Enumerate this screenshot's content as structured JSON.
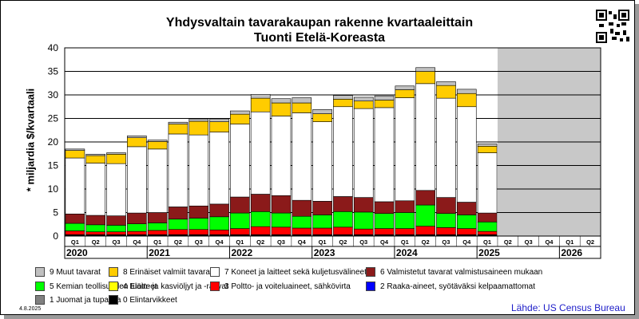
{
  "title": "Yhdysvaltain tavarakaupan rakenne kvartaaleittain",
  "subtitle": "Tuonti Etelä-Koreasta",
  "ylabel": "* miljardia $/kvartaali",
  "date_label": "4.8.2025",
  "source": "Lähde: US Census Bureau",
  "qr_icon": "qr-code-icon",
  "colors": {
    "forecast_bg": "#c8c8c8",
    "grid": "#000000"
  },
  "chart_data": {
    "type": "bar",
    "stacked": true,
    "ylim": [
      0,
      40
    ],
    "yticks": [
      0,
      5,
      10,
      15,
      20,
      25,
      30,
      35,
      40
    ],
    "grid": true,
    "legend_position": "bottom",
    "x": [
      "Q1",
      "Q2",
      "Q3",
      "Q4",
      "Q1",
      "Q2",
      "Q3",
      "Q4",
      "Q1",
      "Q2",
      "Q3",
      "Q4",
      "Q1",
      "Q2",
      "Q3",
      "Q4",
      "Q1",
      "Q2",
      "Q3",
      "Q4",
      "Q1",
      "Q2",
      "Q3",
      "Q4",
      "Q1",
      "Q2"
    ],
    "years": [
      {
        "label": "2020",
        "start": 0
      },
      {
        "label": "2021",
        "start": 4
      },
      {
        "label": "2022",
        "start": 8
      },
      {
        "label": "2023",
        "start": 12
      },
      {
        "label": "2024",
        "start": 16
      },
      {
        "label": "2025",
        "start": 20
      },
      {
        "label": "2026",
        "start": 24
      }
    ],
    "forecast_start_index": 21,
    "series": [
      {
        "name": "0 Elintarvikkeet",
        "color": "#000000",
        "values": [
          0.1,
          0.1,
          0.1,
          0.1,
          0.1,
          0.1,
          0.1,
          0.1,
          0.1,
          0.1,
          0.1,
          0.1,
          0.1,
          0.1,
          0.1,
          0.1,
          0.1,
          0.1,
          0.1,
          0.1,
          0.1,
          null,
          null,
          null,
          null,
          null
        ]
      },
      {
        "name": "1 Juomat ja tupakka",
        "color": "#808080",
        "values": [
          0.1,
          0.1,
          0.1,
          0.1,
          0.1,
          0.1,
          0.1,
          0.1,
          0.1,
          0.1,
          0.1,
          0.1,
          0.1,
          0.1,
          0.1,
          0.1,
          0.1,
          0.1,
          0.1,
          0.1,
          0.1,
          null,
          null,
          null,
          null,
          null
        ]
      },
      {
        "name": "2 Raaka-aineet, syötäväksi kelpaamattomat",
        "color": "#0000ff",
        "values": [
          0.1,
          0.1,
          0.1,
          0.1,
          0.1,
          0.1,
          0.1,
          0.1,
          0.1,
          0.1,
          0.1,
          0.1,
          0.1,
          0.1,
          0.1,
          0.1,
          0.1,
          0.1,
          0.1,
          0.1,
          0.1,
          null,
          null,
          null,
          null,
          null
        ]
      },
      {
        "name": "3 Poltto- ja voiteluaineet, sähkövirta",
        "color": "#ff0000",
        "values": [
          0.8,
          0.6,
          0.6,
          0.7,
          0.9,
          1.1,
          1.1,
          1.0,
          1.3,
          1.7,
          1.6,
          1.4,
          1.4,
          1.6,
          1.2,
          1.3,
          1.3,
          1.8,
          1.5,
          1.3,
          0.7,
          null,
          null,
          null,
          null,
          null
        ]
      },
      {
        "name": "4 Eläin- ja kasviöljyt ja -rasvat",
        "color": "#ffff00",
        "values": [
          0,
          0,
          0,
          0,
          0,
          0,
          0,
          0,
          0,
          0,
          0,
          0,
          0,
          0,
          0,
          0,
          0,
          0,
          0,
          0,
          0,
          null,
          null,
          null,
          null,
          null
        ]
      },
      {
        "name": "5 Kemian teollisuuden tuotteet",
        "color": "#00ff00",
        "values": [
          1.6,
          1.5,
          1.4,
          1.6,
          1.6,
          2.2,
          2.4,
          2.8,
          3.3,
          3.2,
          3.0,
          2.5,
          2.8,
          3.3,
          3.6,
          3.2,
          3.4,
          4.5,
          3.0,
          2.9,
          2.0,
          null,
          null,
          null,
          null,
          null
        ]
      },
      {
        "name": "6 Valmistetut tavarat valmistusaineen mukaan",
        "color": "#8b1a1a",
        "values": [
          2.0,
          2.0,
          2.0,
          2.3,
          2.2,
          2.6,
          2.6,
          2.7,
          3.4,
          3.7,
          3.7,
          3.4,
          2.9,
          3.2,
          3.1,
          2.5,
          2.5,
          3.1,
          3.4,
          2.7,
          1.9,
          null,
          null,
          null,
          null,
          null
        ]
      },
      {
        "name": "7 Koneet ja laitteet sekä kuljetusvälineet",
        "color": "#ffffff",
        "values": [
          11.9,
          11.1,
          11.1,
          14.1,
          13.5,
          15.5,
          15.1,
          15.3,
          15.5,
          17.5,
          16.9,
          18.6,
          16.9,
          19.1,
          18.9,
          20.0,
          21.9,
          22.7,
          21.1,
          20.3,
          12.8,
          null,
          null,
          null,
          null,
          null
        ]
      },
      {
        "name": "8 Erinäiset valmiit tavarat",
        "color": "#ffcc00",
        "values": [
          1.6,
          1.6,
          2.0,
          1.9,
          1.6,
          2.1,
          2.9,
          2.2,
          2.1,
          2.9,
          2.8,
          2.1,
          1.7,
          1.6,
          1.6,
          1.6,
          1.7,
          2.6,
          2.7,
          2.8,
          1.4,
          null,
          null,
          null,
          null,
          null
        ]
      },
      {
        "name": "9 Muut tavarat",
        "color": "#c0c0c0",
        "values": [
          0.3,
          0.3,
          0.3,
          0.4,
          0.3,
          0.4,
          0.5,
          0.6,
          0.7,
          0.8,
          0.9,
          1.1,
          0.9,
          0.8,
          0.8,
          0.9,
          0.8,
          0.8,
          0.8,
          0.9,
          0.5,
          null,
          null,
          null,
          null,
          null
        ]
      }
    ],
    "legend_order": [
      "9 Muut tavarat",
      "8 Erinäiset valmiit tavarat",
      "7 Koneet ja laitteet sekä kuljetusvälineet",
      "6 Valmistetut tavarat valmistusaineen mukaan",
      "5 Kemian teollisuuden tuotteet",
      "4 Eläin- ja kasviöljyt ja -rasvat",
      "3 Poltto- ja voiteluaineet, sähkövirta",
      "2 Raaka-aineet, syötäväksi kelpaamattomat",
      "1 Juomat ja tupakka",
      "0 Elintarvikkeet"
    ]
  }
}
